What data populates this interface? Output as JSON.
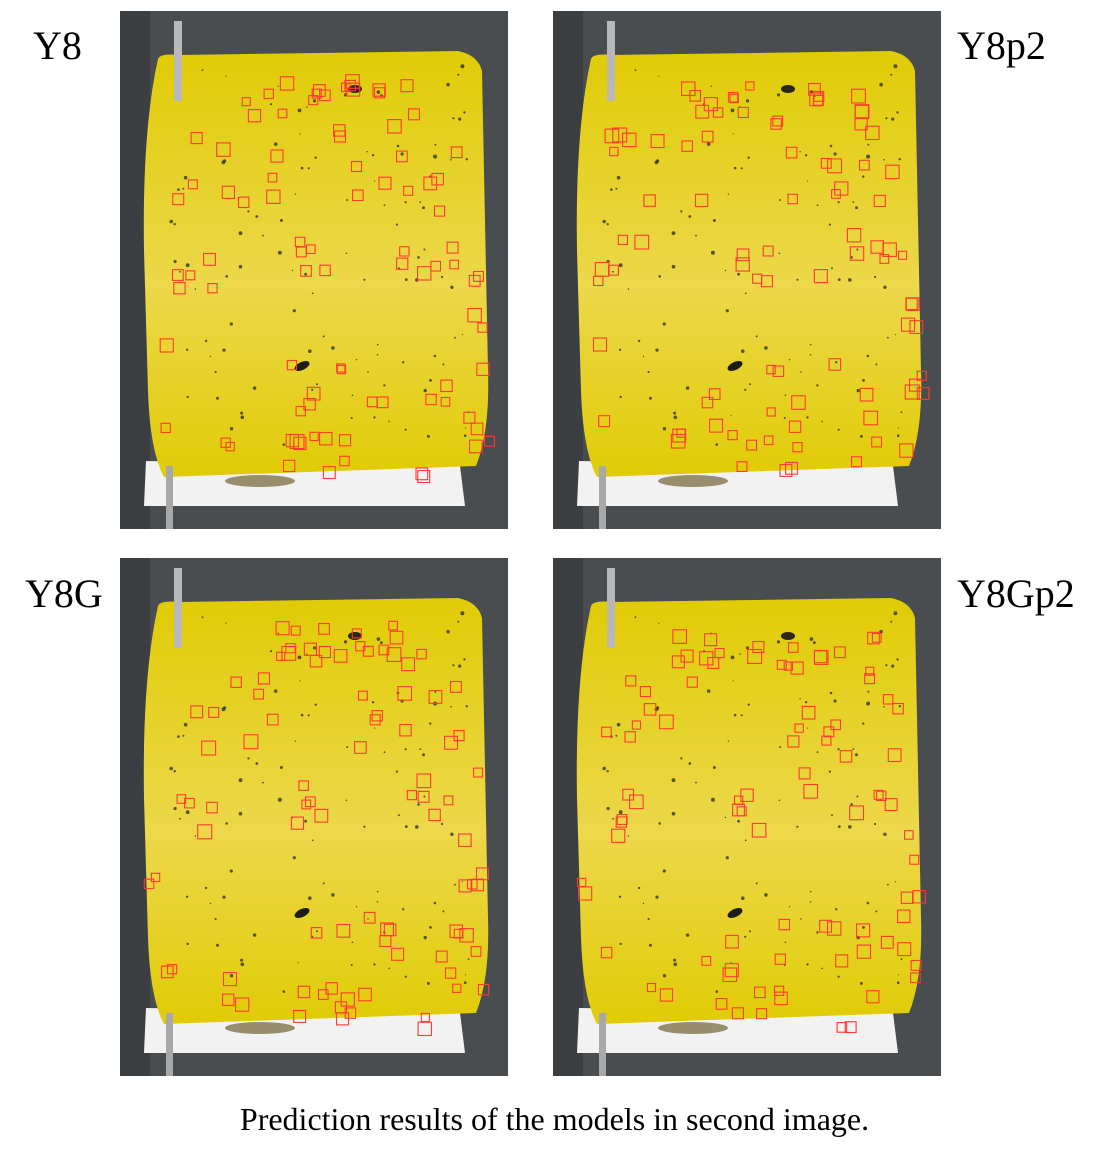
{
  "figure": {
    "panels": [
      {
        "label": "Y8"
      },
      {
        "label": "Y8p2"
      },
      {
        "label": "Y8G"
      },
      {
        "label": "Y8Gp2"
      }
    ],
    "caption": "Prediction results of the models in second image.",
    "colors": {
      "trap": "#e0cb06",
      "trap_light": "#ecd84a",
      "background": "#4a4d50",
      "box": "#ff3b30",
      "paper": "#f2f2f2"
    }
  }
}
